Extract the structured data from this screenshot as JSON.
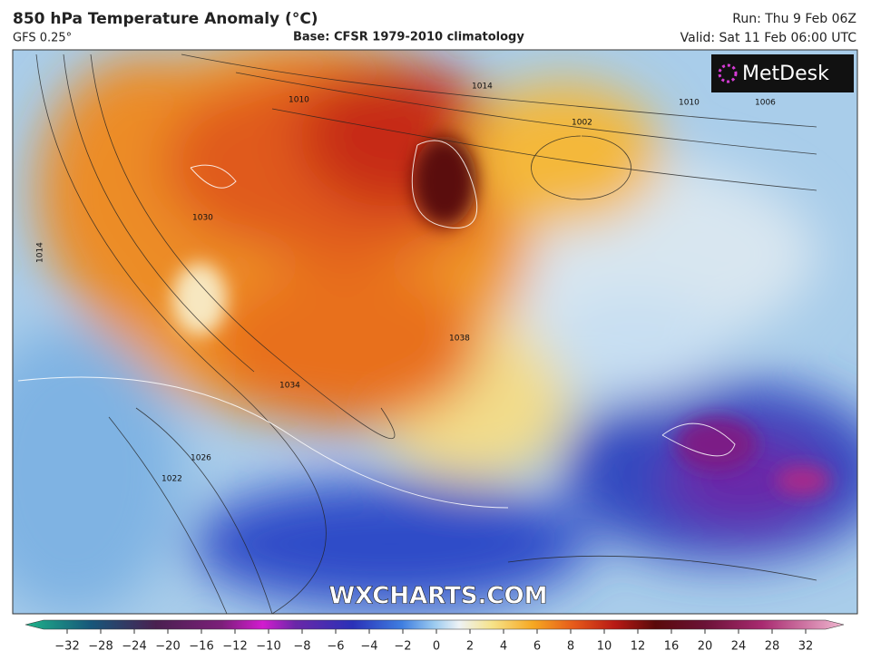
{
  "header": {
    "title": "850 hPa Temperature Anomaly (°C)",
    "model": "GFS 0.25°",
    "base": "Base: CFSR 1979-2010 climatology",
    "run": "Run: Thu 9 Feb 06Z",
    "valid": "Valid: Sat 11 Feb 06:00 UTC"
  },
  "logo": "MetDesk",
  "watermark": "WXCHARTS.COM",
  "contour_labels": [
    "1010",
    "1014",
    "1030",
    "1034",
    "1038",
    "1026",
    "1022",
    "1006",
    "1002",
    "1014",
    "1010"
  ],
  "colorbar": {
    "ticks": [
      {
        "value": -32,
        "label": "−32"
      },
      {
        "value": -28,
        "label": "−28"
      },
      {
        "value": -24,
        "label": "−24"
      },
      {
        "value": -20,
        "label": "−20"
      },
      {
        "value": -16,
        "label": "−16"
      },
      {
        "value": -12,
        "label": "−12"
      },
      {
        "value": -10,
        "label": "−10"
      },
      {
        "value": -8,
        "label": "−8"
      },
      {
        "value": -6,
        "label": "−6"
      },
      {
        "value": -4,
        "label": "−4"
      },
      {
        "value": -2,
        "label": "−2"
      },
      0,
      2,
      4,
      6,
      8,
      10,
      12,
      16,
      20,
      24,
      28,
      32
    ]
  }
}
